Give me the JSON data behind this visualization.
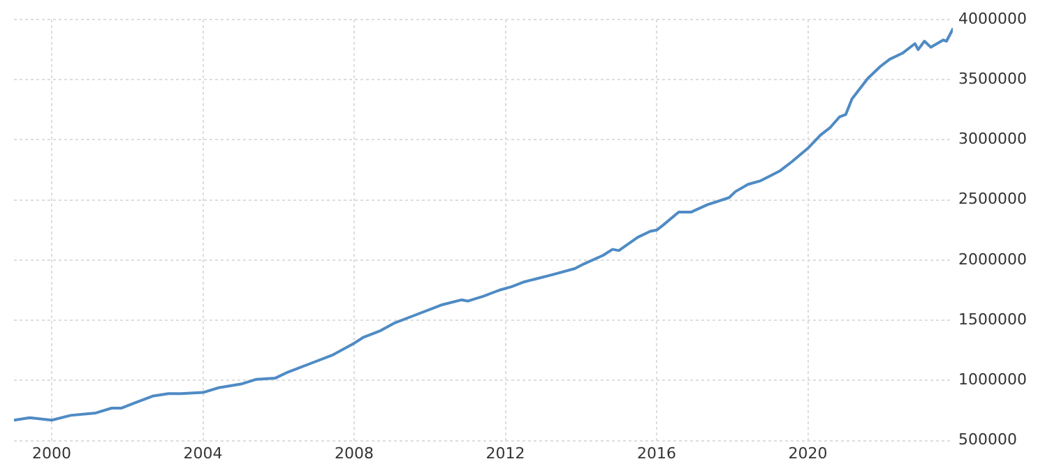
{
  "chart_data": {
    "type": "line",
    "x": [
      "1999-01",
      "1999-06",
      "2000-01",
      "2000-07",
      "2001-03",
      "2001-08",
      "2001-11",
      "2002-04",
      "2002-09",
      "2003-02",
      "2003-06",
      "2004-01",
      "2004-06",
      "2005-01",
      "2005-06",
      "2005-12",
      "2006-04",
      "2006-12",
      "2007-06",
      "2008-01",
      "2008-04",
      "2008-09",
      "2009-02",
      "2009-08",
      "2010-05",
      "2010-11",
      "2011-01",
      "2011-06",
      "2011-10",
      "2011-11",
      "2012-03",
      "2012-07",
      "2013-04",
      "2013-11",
      "2014-02",
      "2014-08",
      "2014-11",
      "2015-01",
      "2015-07",
      "2015-11",
      "2016-01",
      "2016-03",
      "2016-08",
      "2016-12",
      "2017-05",
      "2017-12",
      "2018-02",
      "2018-06",
      "2018-10",
      "2019-04",
      "2019-08",
      "2020-01",
      "2020-05",
      "2020-08",
      "2020-11",
      "2021-01",
      "2021-03",
      "2021-08",
      "2021-12",
      "2022-03",
      "2022-07",
      "2022-11",
      "2022-12",
      "2023-02",
      "2023-04",
      "2023-08",
      "2023-09",
      "2023-11"
    ],
    "series": [
      {
        "color": "#4f8bc4",
        "values": [
          670000,
          690000,
          670000,
          710000,
          730000,
          770000,
          770000,
          820000,
          870000,
          890000,
          890000,
          900000,
          940000,
          970000,
          1010000,
          1020000,
          1070000,
          1150000,
          1210000,
          1310000,
          1360000,
          1410000,
          1480000,
          1540000,
          1630000,
          1670000,
          1660000,
          1700000,
          1740000,
          1750000,
          1780000,
          1820000,
          1880000,
          1930000,
          1970000,
          2040000,
          2090000,
          2080000,
          2190000,
          2240000,
          2250000,
          2290000,
          2400000,
          2400000,
          2460000,
          2520000,
          2570000,
          2630000,
          2660000,
          2740000,
          2820000,
          2930000,
          3040000,
          3100000,
          3190000,
          3210000,
          3340000,
          3510000,
          3610000,
          3670000,
          3720000,
          3800000,
          3750000,
          3820000,
          3770000,
          3830000,
          3820000,
          3920000
        ]
      }
    ],
    "xlim": [
      "1999-01",
      "2023-11"
    ],
    "xticks": [
      "2000",
      "2004",
      "2008",
      "2012",
      "2016",
      "2020"
    ],
    "ylim": [
      500000,
      4000000
    ],
    "yticks": [
      500000,
      1000000,
      1500000,
      2000000,
      2500000,
      3000000,
      3500000,
      4000000
    ],
    "grid": true,
    "legend": false,
    "marker": "none",
    "line_style": "solid"
  }
}
